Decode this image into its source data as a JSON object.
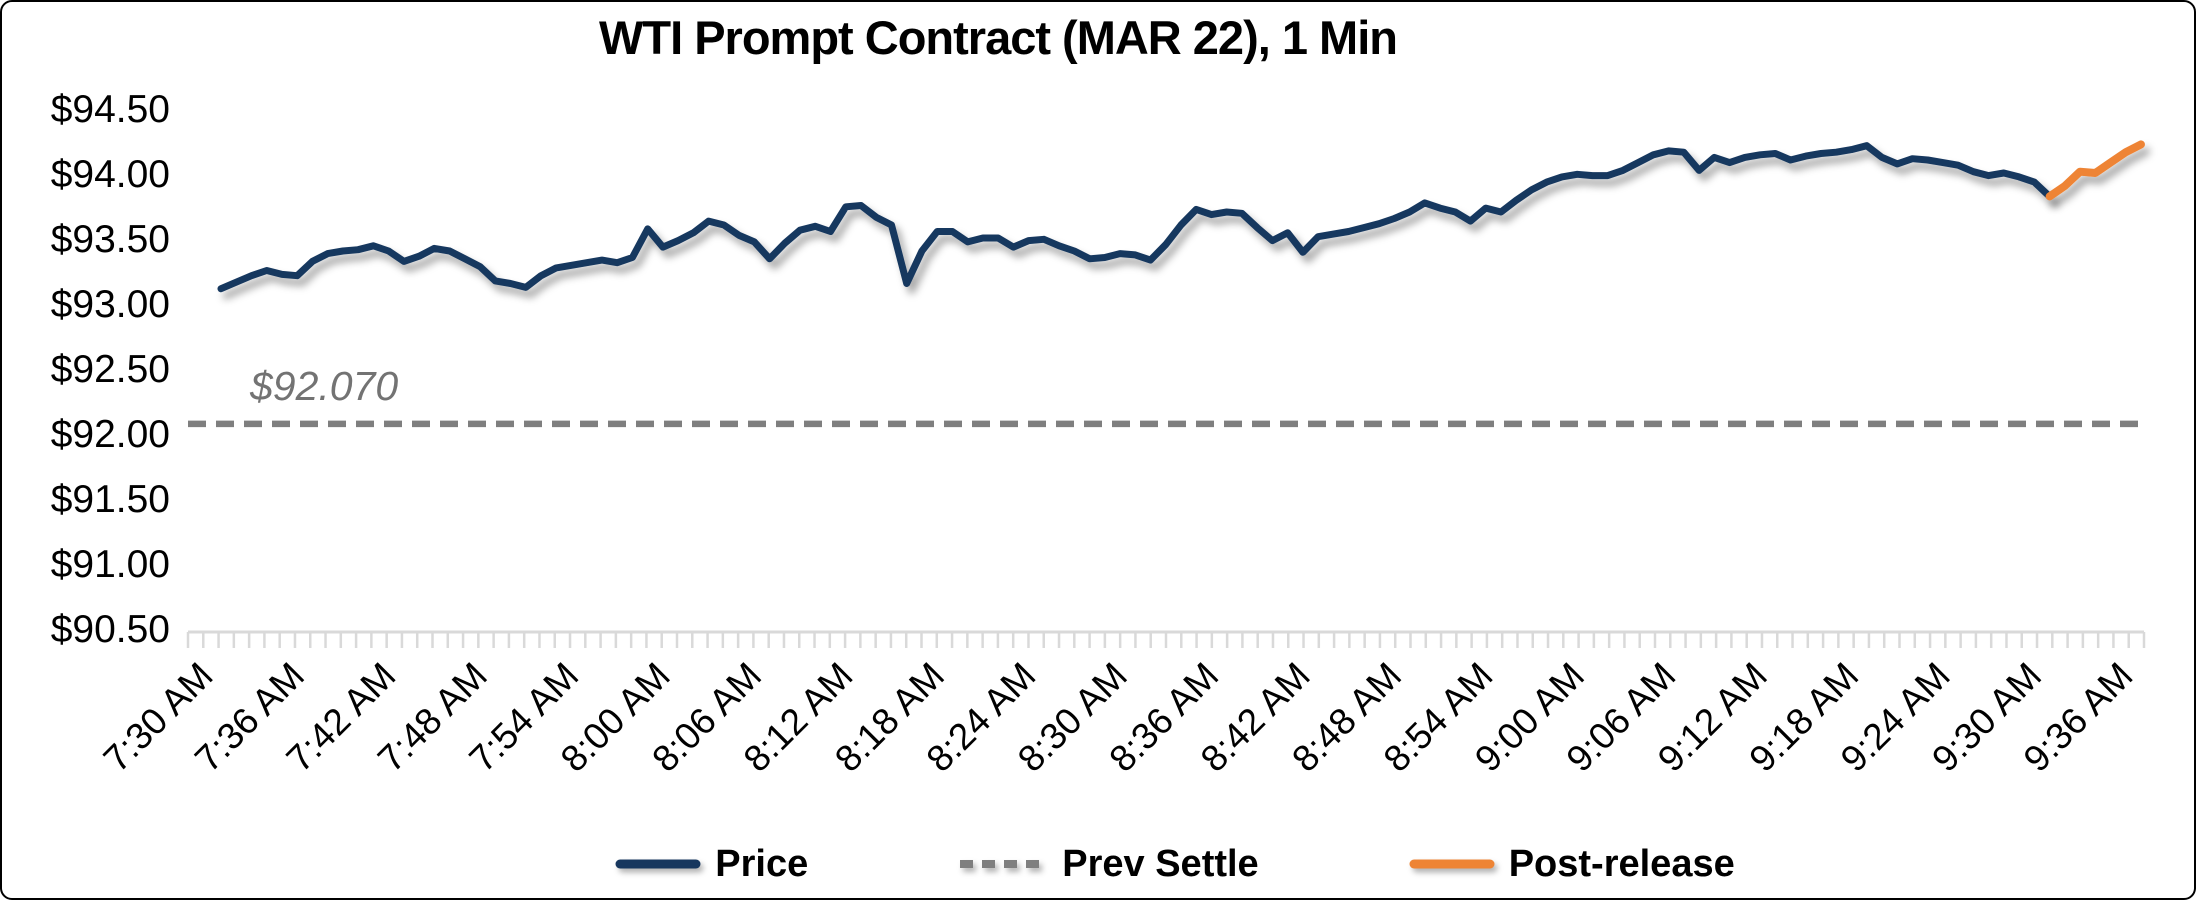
{
  "chart_data": {
    "type": "line",
    "title": "WTI Prompt Contract (MAR 22), 1 Min",
    "x_label_every_n_points": 6,
    "x_tick_labels": [
      "7:30 AM",
      "7:36 AM",
      "7:42 AM",
      "7:48 AM",
      "7:54 AM",
      "8:00 AM",
      "8:06 AM",
      "8:12 AM",
      "8:18 AM",
      "8:24 AM",
      "8:30 AM",
      "8:36 AM",
      "8:42 AM",
      "8:48 AM",
      "8:54 AM",
      "9:00 AM",
      "9:06 AM",
      "9:12 AM",
      "9:18 AM",
      "9:24 AM",
      "9:30 AM",
      "9:36 AM"
    ],
    "y_axis": {
      "min": 90.5,
      "max": 94.5,
      "step": 0.5,
      "tick_labels": [
        "$94.50",
        "$94.00",
        "$93.50",
        "$93.00",
        "$92.50",
        "$92.00",
        "$91.50",
        "$91.00",
        "$90.50"
      ]
    },
    "price": {
      "name": "Price",
      "color": "#17375E",
      "values": [
        93.11,
        93.16,
        93.21,
        93.25,
        93.22,
        93.21,
        93.32,
        93.38,
        93.4,
        93.41,
        93.44,
        93.4,
        93.32,
        93.36,
        93.42,
        93.4,
        93.34,
        93.28,
        93.17,
        93.15,
        93.12,
        93.21,
        93.27,
        93.29,
        93.31,
        93.33,
        93.31,
        93.35,
        93.57,
        93.43,
        93.48,
        93.54,
        93.63,
        93.6,
        93.52,
        93.47,
        93.34,
        93.46,
        93.56,
        93.59,
        93.55,
        93.74,
        93.75,
        93.66,
        93.6,
        93.15,
        93.4,
        93.55,
        93.55,
        93.47,
        93.5,
        93.5,
        93.43,
        93.48,
        93.49,
        93.44,
        93.4,
        93.34,
        93.35,
        93.38,
        93.37,
        93.33,
        93.45,
        93.6,
        93.72,
        93.68,
        93.7,
        93.69,
        93.58,
        93.48,
        93.54,
        93.39,
        93.51,
        93.53,
        93.55,
        93.58,
        93.61,
        93.65,
        93.7,
        93.77,
        93.73,
        93.7,
        93.63,
        93.73,
        93.7,
        93.79,
        93.87,
        93.93,
        93.97,
        93.99,
        93.98,
        93.98,
        94.02,
        94.08,
        94.14,
        94.17,
        94.16,
        94.02,
        94.12,
        94.08,
        94.12,
        94.14,
        94.15,
        94.1,
        94.13,
        94.15,
        94.16,
        94.18,
        94.21,
        94.12,
        94.07,
        94.11,
        94.1,
        94.08,
        94.06,
        94.01,
        93.98,
        94.0,
        93.97,
        93.93,
        93.82
      ]
    },
    "prev_settle": {
      "name": "Prev Settle",
      "value": 92.07,
      "label": "$92.070",
      "color": "#7F7F7F",
      "style": "dashed"
    },
    "post_release": {
      "name": "Post-release",
      "color": "#EE8434",
      "start_index": 120,
      "values": [
        93.82,
        93.9,
        94.01,
        94.0,
        94.08,
        94.16,
        94.22
      ]
    }
  }
}
